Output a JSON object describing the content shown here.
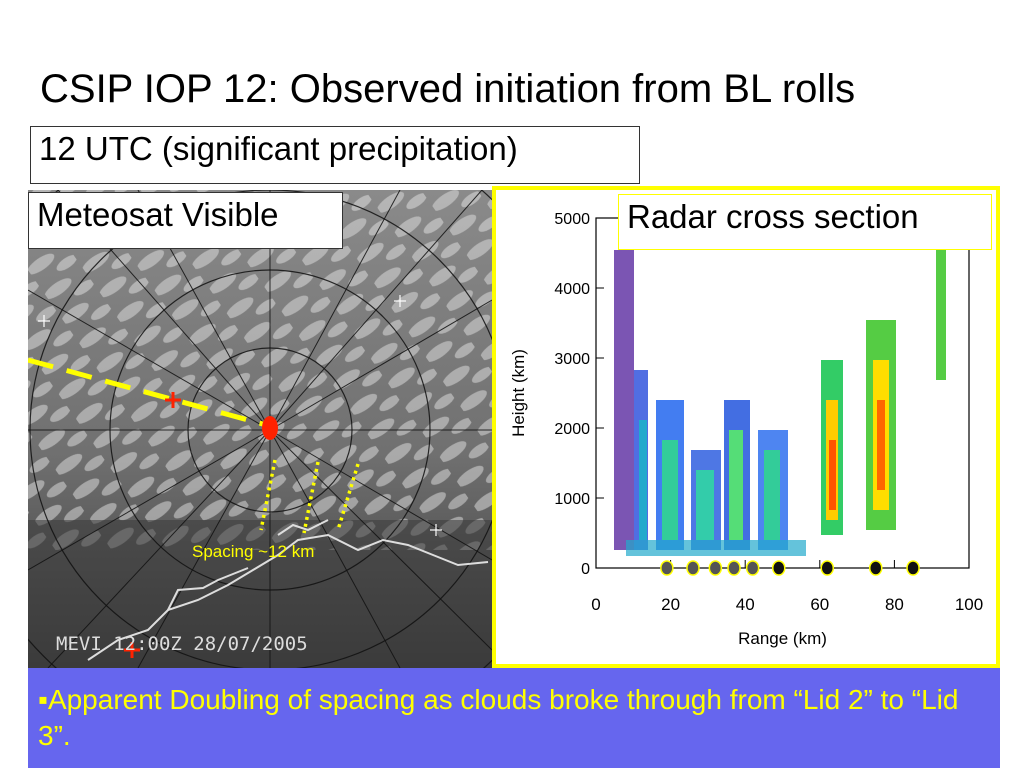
{
  "slide": {
    "title": "CSIP IOP 12: Observed initiation from BL rolls",
    "time_label": "12 UTC (significant precipitation)",
    "sat_label": "Meteosat Visible",
    "radar_label": "Radar cross section",
    "bullet_marker": "▪",
    "bullet": "Apparent Doubling of spacing as clouds broke through from “Lid 2” to “Lid 3”."
  },
  "satellite": {
    "annotation": "Spacing ~12 km",
    "timestamp": "MEVI 12:00Z 28/07/2005"
  },
  "chart_data": {
    "type": "radar cross section",
    "xlabel": "Range (km)",
    "ylabel": "Height (km)",
    "xlim": [
      0,
      100
    ],
    "ylim": [
      0,
      5000
    ],
    "x_ticks": [
      "0",
      "20",
      "40",
      "60",
      "80",
      "100"
    ],
    "y_ticks": [
      "0",
      "1000",
      "2000",
      "3000",
      "4000",
      "5000"
    ],
    "markers_x_km": [
      19,
      26,
      32,
      37,
      42,
      49,
      62,
      75,
      85
    ],
    "marker_colors": [
      "#555555",
      "#555555",
      "#555555",
      "#555555",
      "#555555",
      "#111111",
      "#111111",
      "#111111",
      "#111111"
    ]
  },
  "colors": {
    "accent_yellow": "#ffff00",
    "band_blue": "#6666ee",
    "marker_red": "#ff2200"
  }
}
